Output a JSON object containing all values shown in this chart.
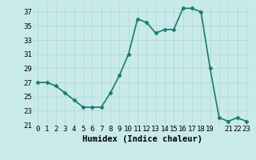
{
  "x": [
    0,
    1,
    2,
    3,
    4,
    5,
    6,
    7,
    8,
    9,
    10,
    11,
    12,
    13,
    14,
    15,
    16,
    17,
    18,
    19,
    20,
    21,
    22,
    23
  ],
  "y": [
    27,
    27,
    26.5,
    25.5,
    24.5,
    23.5,
    23.5,
    23.5,
    25.5,
    28,
    31,
    36,
    35.5,
    34,
    34.5,
    34.5,
    37.5,
    37.5,
    37,
    29,
    22,
    21.5,
    22,
    21.5
  ],
  "line_color": "#1a7a6e",
  "marker": "D",
  "marker_size": 2.5,
  "bg_color": "#c8eaea",
  "grid_color": "#b0d4d4",
  "xlabel": "Humidex (Indice chaleur)",
  "xlim": [
    -0.5,
    23.5
  ],
  "ylim": [
    21,
    38
  ],
  "yticks": [
    21,
    23,
    25,
    27,
    29,
    31,
    33,
    35,
    37
  ],
  "xticks": [
    0,
    1,
    2,
    3,
    4,
    5,
    6,
    7,
    8,
    9,
    10,
    11,
    12,
    13,
    14,
    15,
    16,
    17,
    18,
    19,
    20,
    21,
    22,
    23
  ],
  "xtick_labels": [
    "0",
    "1",
    "2",
    "3",
    "4",
    "5",
    "6",
    "7",
    "8",
    "9",
    "10",
    "11",
    "12",
    "13",
    "14",
    "15",
    "16",
    "17",
    "18",
    "19",
    " ",
    "21",
    "22",
    "23"
  ],
  "tick_fontsize": 6.5,
  "xlabel_fontsize": 7.5,
  "linewidth": 1.2
}
